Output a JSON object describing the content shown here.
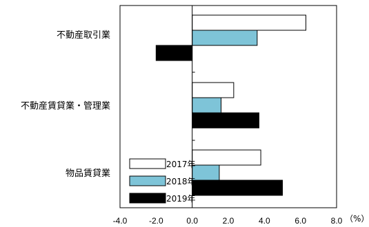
{
  "chart_data": {
    "type": "bar",
    "orientation": "horizontal",
    "categories": [
      "不動産取引業",
      "不動産賃貸業・管理業",
      "物品賃貸業"
    ],
    "series": [
      {
        "name": "2017年",
        "color": "#ffffff",
        "values": [
          6.3,
          2.3,
          3.8
        ]
      },
      {
        "name": "2018年",
        "color": "#7ec4d8",
        "values": [
          3.6,
          1.6,
          1.5
        ]
      },
      {
        "name": "2019年",
        "color": "#000000",
        "values": [
          -2.0,
          3.7,
          5.0
        ]
      }
    ],
    "xlim": [
      -4.0,
      8.0
    ],
    "xticks": [
      -4.0,
      -2.0,
      0.0,
      2.0,
      4.0,
      6.0,
      8.0
    ],
    "tick_labels": [
      "-4.0",
      "-2.0",
      "0.0",
      "2.0",
      "4.0",
      "6.0",
      "8.0"
    ],
    "unit": "（%）",
    "grid": false,
    "legend_position": "bottom-left"
  }
}
